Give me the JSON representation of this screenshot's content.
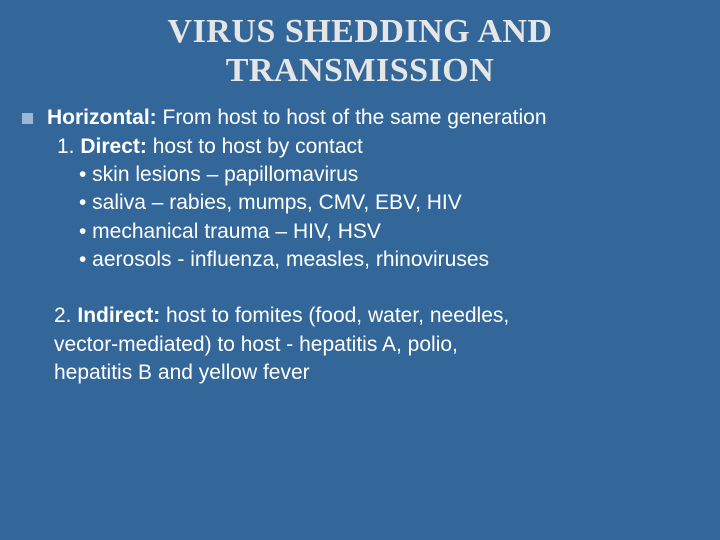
{
  "slide": {
    "background_color": "#336699",
    "text_color": "#ffffff",
    "title_color": "#e6e6e6",
    "bullet_color": "#9bb7d4",
    "title_font_family": "Times New Roman",
    "body_font_family": "Verdana",
    "title_font_size_pt": 26,
    "body_font_size_pt": 16,
    "title_line1": "VIRUS SHEDDING AND",
    "title_line2": "TRANSMISSION",
    "horizontal_label": "Horizontal:",
    "horizontal_rest": " From host to host of the same generation",
    "direct_prefix": "1. ",
    "direct_label": "Direct:",
    "direct_rest": " host to host by contact",
    "bullets": {
      "b1": "• skin lesions – papillomavirus",
      "b2": "• saliva – rabies, mumps, CMV, EBV, HIV",
      "b3": "• mechanical trauma – HIV, HSV",
      "b4": "• aerosols - influenza, measles, rhinoviruses"
    },
    "indirect_prefix": "2. ",
    "indirect_label": "Indirect:",
    "indirect_rest1": " host to fomites (food, water, needles,",
    "indirect_line2": "vector-mediated) to host - hepatitis A, polio,",
    "indirect_line3": "hepatitis B and yellow fever"
  }
}
